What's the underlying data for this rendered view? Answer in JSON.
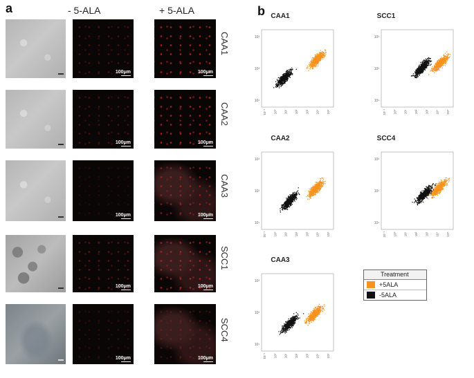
{
  "panel_a": {
    "letter": "a",
    "col_minus": "- 5-ALA",
    "col_plus": "+ 5-ALA",
    "scale_label": "100μm",
    "rows": [
      {
        "label": "CAA1"
      },
      {
        "label": "CAA2"
      },
      {
        "label": "CAA3"
      },
      {
        "label": "SCC1"
      },
      {
        "label": "SCC4"
      }
    ]
  },
  "panel_b": {
    "letter": "b",
    "plots": [
      {
        "title": "CAA1"
      },
      {
        "title": "SCC1"
      },
      {
        "title": "CAA2"
      },
      {
        "title": "SCC4"
      },
      {
        "title": "CAA3"
      }
    ],
    "y_tick_labels": [
      "10³",
      "10²",
      "10¹"
    ],
    "x_tick_labels": [
      "10⁻¹",
      "10⁰",
      "10¹",
      "10²",
      "10³",
      "10⁴",
      "10⁵"
    ]
  },
  "legend": {
    "title": "Treatment",
    "items": [
      {
        "label": "+5ALA",
        "color": "#f7931e"
      },
      {
        "label": "-5ALA",
        "color": "#111111"
      }
    ]
  },
  "colors": {
    "plus_5ala": "#f7931e",
    "minus_5ala": "#111111"
  }
}
